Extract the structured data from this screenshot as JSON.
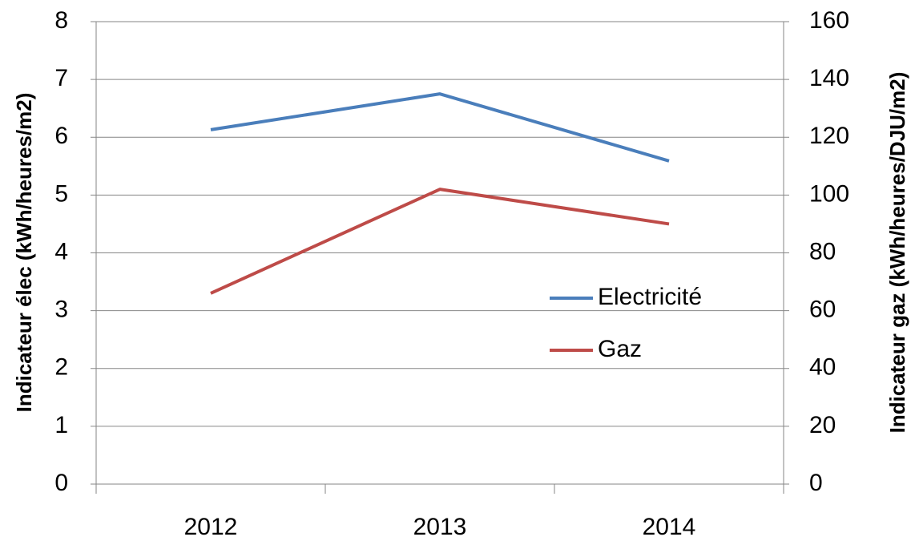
{
  "chart_data": {
    "type": "line",
    "categories": [
      "2012",
      "2013",
      "2014"
    ],
    "series": [
      {
        "name": "Electricité",
        "color": "#4a7ebb",
        "values": [
          6.13,
          6.75,
          5.59
        ]
      },
      {
        "name": "Gaz",
        "color": "#be4b48",
        "values": [
          66,
          102,
          90
        ],
        "axis": "y2"
      }
    ],
    "ylabel": "Indicateur élec (kWh/heures/m2)",
    "y2label": "Indicateur gaz (kWh/heures/DJU/m2)",
    "ylim": [
      0,
      8
    ],
    "yticks": [
      0,
      1,
      2,
      3,
      4,
      5,
      6,
      7,
      8
    ],
    "y2lim": [
      0,
      160
    ],
    "y2ticks": [
      0,
      20,
      40,
      60,
      80,
      100,
      120,
      140,
      160
    ],
    "grid": true,
    "legend": "right"
  }
}
